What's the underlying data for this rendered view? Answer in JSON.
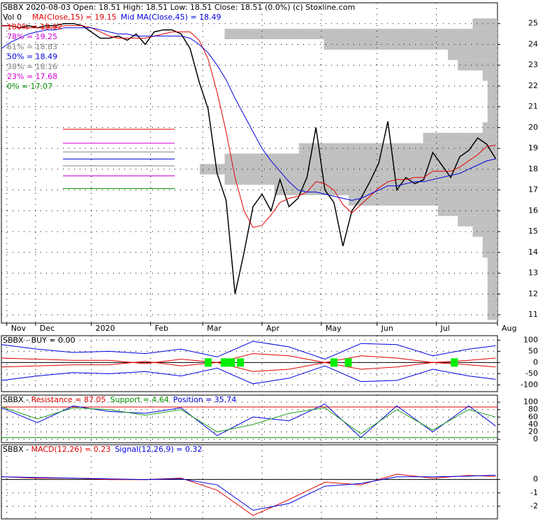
{
  "chart_data": [
    {
      "type": "line",
      "title": "SBBX 2020-08-03 Open: 18.51 High: 18.51 Low: 18.51 Close: 18.51 (0.0%) (c) Stoxline.com",
      "volume_label": "Vol 0",
      "x": [
        0,
        5,
        10,
        15,
        20,
        25,
        30,
        35,
        40,
        45,
        50,
        55,
        60,
        65,
        70,
        75,
        80,
        85,
        90,
        95,
        100,
        105,
        110,
        115,
        120,
        125,
        130,
        135,
        140,
        145,
        150,
        155,
        160,
        165,
        170,
        175,
        180,
        185,
        190,
        195,
        200,
        205,
        210,
        215,
        220,
        225,
        230,
        235,
        240,
        245,
        250,
        255,
        260,
        265,
        270,
        275
      ],
      "series": [
        {
          "color": "#000000",
          "values": [
            24.9,
            24.9,
            24.8,
            24.9,
            24.8,
            24.9,
            24.9,
            25.0,
            25.0,
            24.9,
            24.6,
            24.3,
            24.3,
            24.4,
            24.2,
            24.5,
            24.0,
            24.6,
            24.7,
            24.7,
            24.5,
            23.8,
            22.2,
            20.9,
            17.8,
            16.5,
            12.0,
            14.0,
            16.2,
            16.8,
            16.0,
            17.5,
            16.2,
            16.6,
            17.6,
            20.0,
            17.0,
            16.4,
            14.3,
            16.0,
            16.6,
            17.4,
            18.3,
            20.3,
            17.0,
            17.6,
            17.3,
            17.5,
            18.8,
            18.2,
            17.6,
            18.6,
            18.9,
            19.5,
            19.2,
            18.51
          ]
        },
        {
          "name": "MA(Close,15) = 19.15",
          "color": "#e00000",
          "values": [
            24.9,
            24.9,
            24.8,
            24.8,
            24.8,
            24.8,
            24.8,
            24.9,
            24.9,
            24.9,
            24.8,
            24.6,
            24.4,
            24.3,
            24.3,
            24.3,
            24.3,
            24.4,
            24.5,
            24.6,
            24.6,
            24.6,
            24.2,
            23.3,
            21.7,
            19.8,
            17.6,
            16.0,
            15.2,
            15.3,
            15.8,
            16.4,
            16.6,
            16.7,
            16.9,
            17.4,
            17.3,
            17.0,
            16.3,
            15.9,
            16.3,
            16.7,
            17.1,
            17.4,
            17.5,
            17.5,
            17.6,
            17.6,
            17.9,
            17.9,
            17.9,
            18.1,
            18.4,
            18.7,
            19.1,
            19.15
          ]
        },
        {
          "name": "Mid MA(Close,45) = 18.49",
          "color": "#0000e0",
          "values": [
            23.8,
            24.1,
            24.3,
            24.5,
            24.6,
            24.7,
            24.7,
            24.8,
            24.8,
            24.8,
            24.8,
            24.7,
            24.6,
            24.5,
            24.5,
            24.4,
            24.4,
            24.4,
            24.4,
            24.4,
            24.4,
            24.3,
            24.0,
            23.6,
            23.0,
            22.3,
            21.4,
            20.6,
            19.8,
            19.0,
            18.4,
            17.9,
            17.4,
            17.0,
            16.9,
            16.9,
            16.8,
            16.7,
            16.6,
            16.5,
            16.6,
            16.8,
            17.0,
            17.2,
            17.2,
            17.3,
            17.4,
            17.4,
            17.5,
            17.6,
            17.7,
            17.8,
            18.0,
            18.2,
            18.4,
            18.49
          ]
        }
      ],
      "fib_levels": [
        {
          "label": "100% = 19.92",
          "value": 19.92,
          "color": "#e00000"
        },
        {
          "label": "78% = 19.25",
          "value": 19.25,
          "color": "#d000d0"
        },
        {
          "label": "61% = 18.83",
          "value": 18.83,
          "color": "#808080"
        },
        {
          "label": "50% = 18.49",
          "value": 18.49,
          "color": "#0000e0"
        },
        {
          "label": "38% = 18.16",
          "value": 18.16,
          "color": "#808080"
        },
        {
          "label": "23% = 17.68",
          "value": 17.68,
          "color": "#d000d0"
        },
        {
          "label": "0% = 17.07",
          "value": 17.07,
          "color": "#009000"
        }
      ],
      "volume_profile": {
        "color": "#c0c0c0",
        "levels": [
          25,
          24.5,
          24,
          23.5,
          23,
          22.5,
          22,
          21.5,
          21,
          20.5,
          20,
          19.5,
          19,
          18.5,
          18,
          17.5,
          17,
          16.5,
          16,
          15.5,
          15,
          14.5,
          14,
          13.5,
          13,
          12.5,
          12,
          11.5,
          11
        ],
        "values": [
          5,
          55,
          35,
          10,
          8,
          3,
          2,
          2,
          2,
          2,
          3,
          15,
          40,
          55,
          60,
          55,
          45,
          30,
          12,
          8,
          5,
          3,
          3,
          2,
          2,
          2,
          2,
          2,
          2
        ]
      },
      "xlim": [
        0,
        276
      ],
      "xticks": [
        {
          "value": 3,
          "label": "Nov"
        },
        {
          "value": 19,
          "label": "Dec"
        },
        {
          "value": 50,
          "label": "2020"
        },
        {
          "value": 83,
          "label": "Feb"
        },
        {
          "value": 112,
          "label": "Mar"
        },
        {
          "value": 145,
          "label": "Apr"
        },
        {
          "value": 178,
          "label": "May"
        },
        {
          "value": 209,
          "label": "Jun"
        },
        {
          "value": 242,
          "label": "Jul"
        },
        {
          "value": 276,
          "label": "Aug"
        }
      ],
      "ylim": [
        10.6,
        26
      ],
      "yticks": [
        11,
        12,
        13,
        14,
        15,
        16,
        17,
        18,
        19,
        20,
        21,
        22,
        23,
        24,
        25
      ],
      "grid": true
    },
    {
      "type": "line",
      "label": "SBBX - BUY = 0.00",
      "x": [
        0,
        20,
        40,
        60,
        80,
        100,
        120,
        140,
        160,
        180,
        200,
        220,
        240,
        260,
        275
      ],
      "series": [
        {
          "color": "#0000e0",
          "values": [
            80,
            60,
            45,
            50,
            40,
            60,
            25,
            95,
            70,
            15,
            85,
            80,
            30,
            60,
            75
          ]
        },
        {
          "color": "#0000e0",
          "values": [
            -80,
            -60,
            -45,
            -50,
            -40,
            -60,
            -25,
            -95,
            -70,
            -15,
            -85,
            -80,
            -30,
            -60,
            -75
          ]
        },
        {
          "color": "#e00000",
          "values": [
            20,
            15,
            10,
            10,
            -5,
            15,
            0,
            40,
            30,
            0,
            30,
            20,
            0,
            10,
            20
          ]
        },
        {
          "color": "#e00000",
          "values": [
            -20,
            -15,
            -10,
            -10,
            5,
            -15,
            0,
            -40,
            -30,
            0,
            -30,
            -20,
            0,
            -10,
            -20
          ]
        }
      ],
      "markers": {
        "color": "#00ee00",
        "x": [
          115,
          124,
          128,
          133,
          185,
          193,
          252
        ],
        "values": [
          0,
          0,
          0,
          0,
          0,
          0,
          0
        ]
      },
      "xlim": [
        0,
        276
      ],
      "ylim": [
        -130,
        120
      ],
      "yticks": [
        100,
        50,
        0,
        -50,
        -100
      ],
      "grid": true
    },
    {
      "type": "line",
      "label": "SBBX - ",
      "legend": [
        {
          "text": "Resistance = 87.05",
          "color": "#e00000"
        },
        {
          "text": "Support = 4.64",
          "color": "#009000"
        },
        {
          "text": "Position = 35.74",
          "color": "#0000e0"
        }
      ],
      "resistance": 87.05,
      "support": 4.64,
      "x": [
        0,
        20,
        40,
        60,
        80,
        100,
        120,
        140,
        160,
        180,
        200,
        220,
        240,
        260,
        275
      ],
      "series": [
        {
          "color": "#0000e0",
          "values": [
            85,
            45,
            90,
            75,
            70,
            85,
            10,
            60,
            50,
            95,
            5,
            90,
            20,
            90,
            35.74
          ]
        },
        {
          "color": "#20a020",
          "values": [
            88,
            55,
            85,
            80,
            65,
            80,
            20,
            40,
            70,
            85,
            15,
            80,
            25,
            80,
            60
          ]
        }
      ],
      "xlim": [
        0,
        276
      ],
      "ylim": [
        -9,
        119
      ],
      "yticks": [
        100,
        80,
        60,
        40,
        20,
        0
      ],
      "grid": true
    },
    {
      "type": "line",
      "label": "SBBX - ",
      "legend": [
        {
          "text": "MACD(12,26) = 0.23",
          "color": "#e00000"
        },
        {
          "text": "Signal(12,26,9) = 0.32",
          "color": "#0000e0"
        }
      ],
      "x": [
        0,
        20,
        40,
        60,
        80,
        100,
        120,
        140,
        160,
        180,
        200,
        220,
        240,
        260,
        275
      ],
      "series": [
        {
          "color": "#e00000",
          "values": [
            0.2,
            0.1,
            0.1,
            0.0,
            0.0,
            0.1,
            -0.8,
            -2.7,
            -1.5,
            -0.2,
            -0.4,
            0.4,
            0.1,
            0.3,
            0.23
          ]
        },
        {
          "color": "#0000e0",
          "values": [
            0.2,
            0.15,
            0.1,
            0.05,
            0.0,
            0.05,
            -0.4,
            -2.3,
            -1.8,
            -0.5,
            -0.3,
            0.2,
            0.2,
            0.25,
            0.32
          ]
        }
      ],
      "xlim": [
        0,
        276
      ],
      "ylim": [
        -2.95,
        2.6
      ],
      "yticks": [
        0,
        -1,
        -2
      ],
      "grid": true
    }
  ]
}
